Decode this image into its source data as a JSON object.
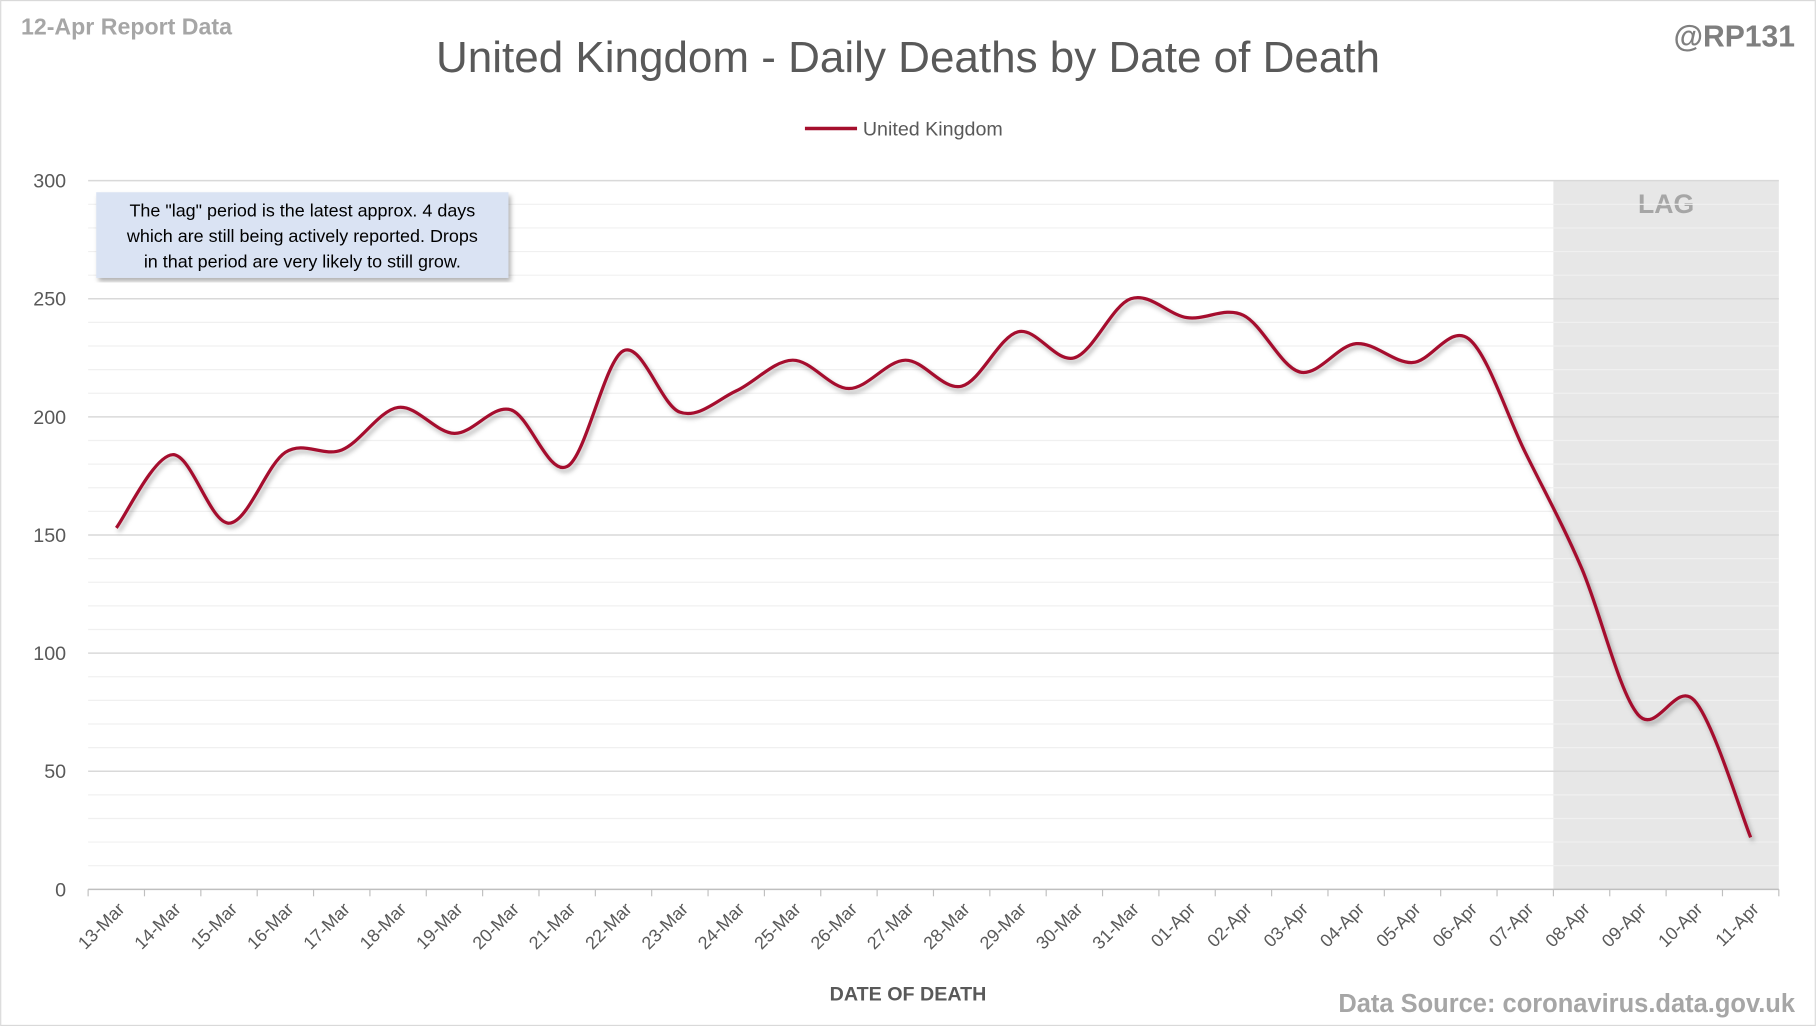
{
  "header": {
    "report_label": "12-Apr Report Data",
    "handle": "@RP131",
    "source": "Data Source: coronavirus.data.gov.uk"
  },
  "annotation": {
    "lines": [
      "The \"lag\" period is the latest approx. 4 days",
      "which are still being actively reported.  Drops",
      "in that period are very likely to still grow."
    ]
  },
  "chart_data": {
    "type": "line",
    "title": "United Kingdom - Daily Deaths by Date of Death",
    "xlabel": "DATE OF DEATH",
    "ylabel": "",
    "ylim": [
      0,
      300
    ],
    "yticks": [
      0,
      50,
      100,
      150,
      200,
      250,
      300
    ],
    "grid": true,
    "legend_position": "top-center",
    "categories": [
      "13-Mar",
      "14-Mar",
      "15-Mar",
      "16-Mar",
      "17-Mar",
      "18-Mar",
      "19-Mar",
      "20-Mar",
      "21-Mar",
      "22-Mar",
      "23-Mar",
      "24-Mar",
      "25-Mar",
      "26-Mar",
      "27-Mar",
      "28-Mar",
      "29-Mar",
      "30-Mar",
      "31-Mar",
      "01-Apr",
      "02-Apr",
      "03-Apr",
      "04-Apr",
      "05-Apr",
      "06-Apr",
      "07-Apr",
      "08-Apr",
      "09-Apr",
      "10-Apr",
      "11-Apr"
    ],
    "series": [
      {
        "name": "United Kingdom",
        "color": "#A50F2D",
        "values": [
          153,
          184,
          155,
          185,
          186,
          204,
          193,
          203,
          179,
          228,
          202,
          211,
          224,
          212,
          224,
          213,
          236,
          225,
          250,
          242,
          243,
          219,
          231,
          223,
          233,
          185,
          136,
          74,
          80,
          22
        ]
      }
    ],
    "shaded_region": {
      "label": "LAG",
      "from": "08-Apr",
      "to": "11-Apr",
      "color": "#E7E7E7"
    }
  }
}
